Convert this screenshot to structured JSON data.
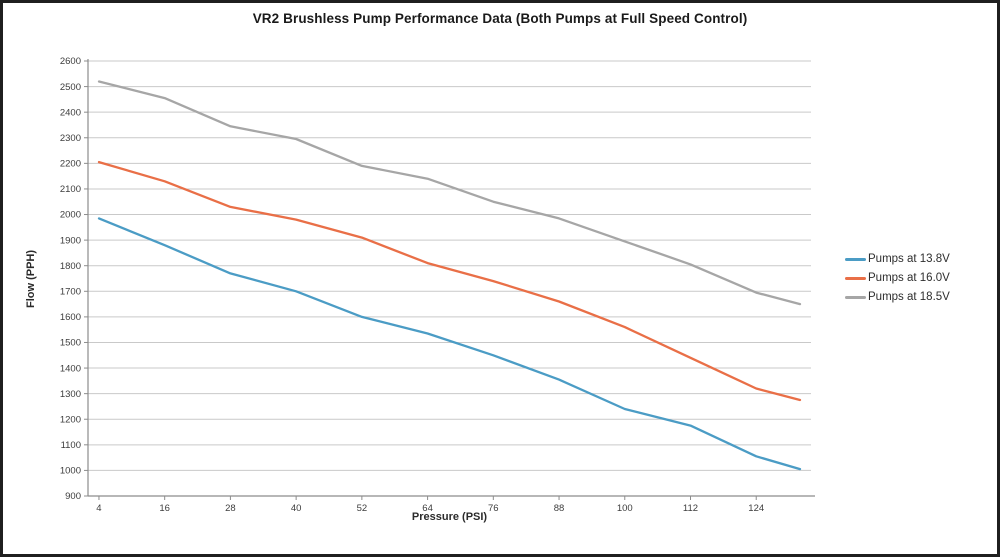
{
  "frame": {
    "border_color": "#1f1f1f",
    "background_color": "#ffffff"
  },
  "chart_data": {
    "type": "line",
    "title": "VR2 Brushless Pump Performance Data (Both Pumps at Full Speed Control)",
    "xlabel": "Pressure (PSI)",
    "ylabel": "Flow (PPH)",
    "xlim": [
      2,
      134
    ],
    "ylim": [
      900,
      2600
    ],
    "ytick_step": 100,
    "xticks": [
      4,
      16,
      28,
      40,
      52,
      64,
      76,
      88,
      100,
      112,
      124
    ],
    "grid": "horizontal-only",
    "legend_position": "right",
    "axis_color": "#8c8c8c",
    "grid_color": "#c9c9c9",
    "tick_label_color": "#3d3d3d",
    "x": [
      4,
      16,
      28,
      40,
      52,
      64,
      76,
      88,
      100,
      112,
      124,
      132
    ],
    "series": [
      {
        "name": "Pumps at 13.8V",
        "color": "#4b9cc5",
        "values": [
          1985,
          1880,
          1770,
          1700,
          1600,
          1535,
          1450,
          1355,
          1240,
          1175,
          1055,
          1005
        ]
      },
      {
        "name": "Pumps at 16.0V",
        "color": "#e96f47",
        "values": [
          2205,
          2130,
          2030,
          1980,
          1910,
          1810,
          1740,
          1660,
          1560,
          1440,
          1320,
          1275
        ]
      },
      {
        "name": "Pumps at 18.5V",
        "color": "#a6a6a6",
        "values": [
          2520,
          2455,
          2345,
          2295,
          2190,
          2140,
          2050,
          1985,
          1895,
          1805,
          1695,
          1650
        ]
      }
    ]
  }
}
